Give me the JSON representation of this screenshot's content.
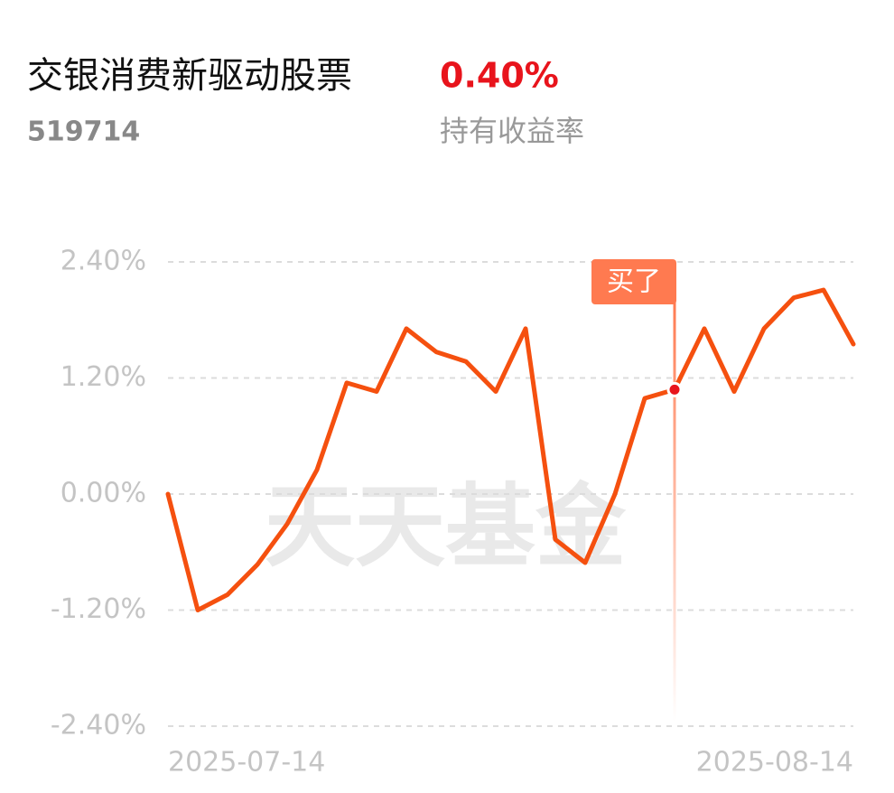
{
  "header": {
    "fund_name": "交银消费新驱动股票",
    "fund_code": "519714",
    "return_value": "0.40%",
    "return_label": "持有收益率"
  },
  "chart_data": {
    "type": "line",
    "categories": [
      "2025-07-14",
      null,
      null,
      null,
      null,
      null,
      null,
      null,
      null,
      null,
      null,
      null,
      null,
      null,
      null,
      null,
      null,
      null,
      null,
      null,
      null,
      null,
      null,
      "2025-08-14"
    ],
    "series": [
      {
        "color": "#f5500f",
        "values": [
          0.0,
          -1.2,
          -1.04,
          -0.73,
          -0.31,
          0.25,
          1.15,
          1.06,
          1.71,
          1.47,
          1.37,
          1.06,
          1.71,
          -0.47,
          -0.71,
          0.0,
          0.99,
          1.08,
          1.71,
          1.06,
          1.71,
          2.03,
          2.11,
          1.55
        ]
      }
    ],
    "ylim": [
      -2.4,
      2.4
    ],
    "yticks": [
      {
        "value": 2.4,
        "label": "2.40%"
      },
      {
        "value": 1.2,
        "label": "1.20%"
      },
      {
        "value": 0,
        "label": "0.00%"
      },
      {
        "value": -1.2,
        "label": "-1.20%"
      },
      {
        "value": -2.4,
        "label": "-2.40%"
      }
    ],
    "grid": true,
    "annotations": [
      {
        "text": "买了",
        "index": 17
      }
    ],
    "watermark": "天天基金"
  }
}
